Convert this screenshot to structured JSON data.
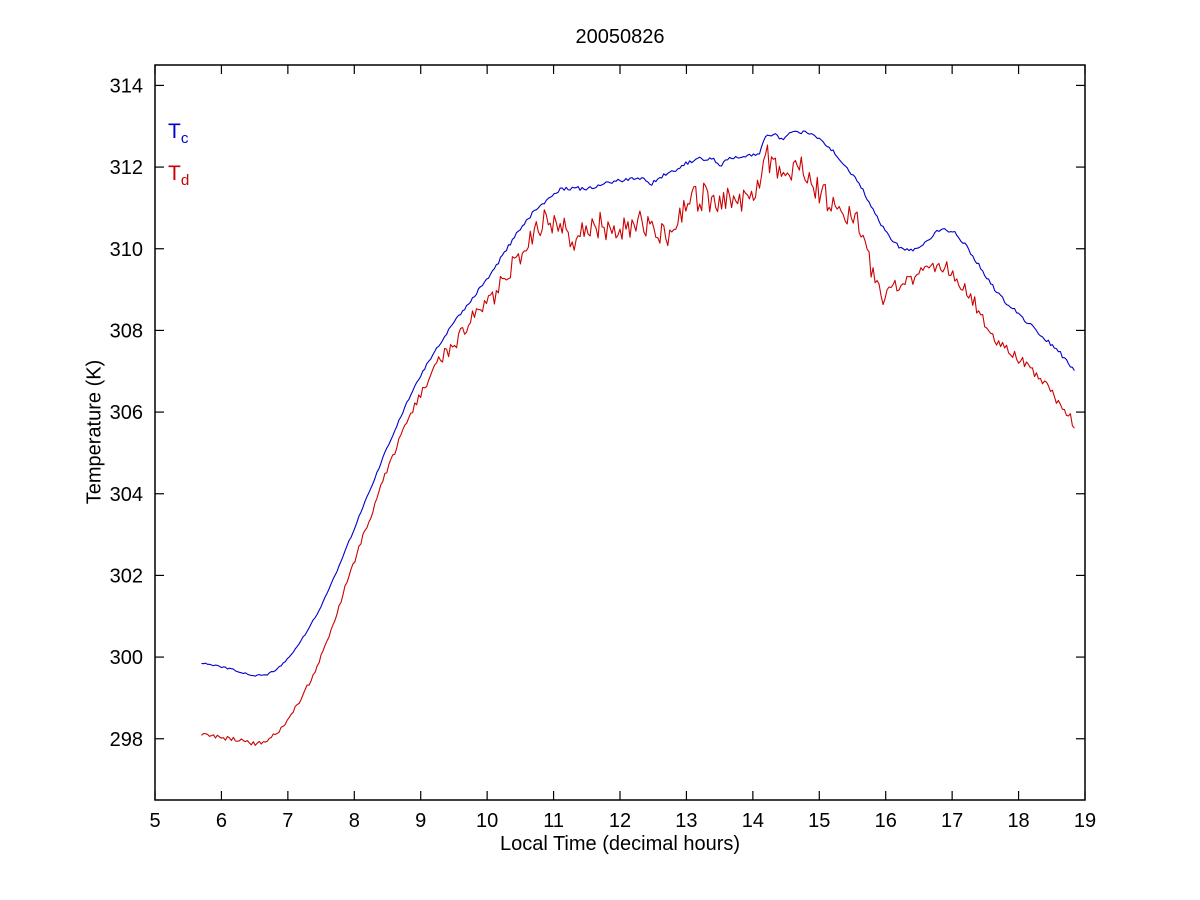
{
  "title": "20050826",
  "legend": [
    {
      "main": "T",
      "sub": "c",
      "color": "#0000cc"
    },
    {
      "main": "T",
      "sub": "d",
      "color": "#cc0000"
    }
  ],
  "chart_data": {
    "type": "line",
    "title": "20050826",
    "xlabel": "Local Time (decimal hours)",
    "ylabel": "Temperature (K)",
    "xlim": [
      5,
      19
    ],
    "ylim": [
      296.5,
      314.5
    ],
    "xticks": [
      5,
      6,
      7,
      8,
      9,
      10,
      11,
      12,
      13,
      14,
      15,
      16,
      17,
      18,
      19
    ],
    "yticks": [
      298,
      300,
      302,
      304,
      306,
      308,
      310,
      312,
      314
    ],
    "grid": false,
    "legend_position": "top-left-inside",
    "series": [
      {
        "name": "Tc",
        "color": "#0000cc",
        "noise_amplitude": [
          [
            5.7,
            0.02
          ],
          [
            9.0,
            0.03
          ],
          [
            10.5,
            0.05
          ],
          [
            14.0,
            0.04
          ],
          [
            18.85,
            0.05
          ]
        ],
        "points": [
          [
            5.7,
            299.85
          ],
          [
            5.9,
            299.8
          ],
          [
            6.1,
            299.72
          ],
          [
            6.3,
            299.63
          ],
          [
            6.5,
            299.55
          ],
          [
            6.7,
            299.57
          ],
          [
            6.9,
            299.78
          ],
          [
            7.1,
            300.15
          ],
          [
            7.3,
            300.65
          ],
          [
            7.5,
            301.25
          ],
          [
            7.7,
            301.95
          ],
          [
            7.9,
            302.75
          ],
          [
            8.1,
            303.55
          ],
          [
            8.3,
            304.35
          ],
          [
            8.5,
            305.15
          ],
          [
            8.7,
            305.9
          ],
          [
            8.9,
            306.6
          ],
          [
            9.1,
            307.2
          ],
          [
            9.3,
            307.7
          ],
          [
            9.5,
            308.2
          ],
          [
            9.7,
            308.6
          ],
          [
            9.9,
            309.05
          ],
          [
            10.1,
            309.5
          ],
          [
            10.3,
            310.0
          ],
          [
            10.5,
            310.5
          ],
          [
            10.7,
            310.9
          ],
          [
            10.9,
            311.2
          ],
          [
            11.1,
            311.45
          ],
          [
            11.3,
            311.5
          ],
          [
            11.5,
            311.45
          ],
          [
            11.7,
            311.55
          ],
          [
            11.9,
            311.65
          ],
          [
            12.1,
            311.7
          ],
          [
            12.35,
            311.75
          ],
          [
            12.45,
            311.55
          ],
          [
            12.6,
            311.75
          ],
          [
            12.8,
            311.9
          ],
          [
            13.0,
            312.1
          ],
          [
            13.2,
            312.2
          ],
          [
            13.4,
            312.2
          ],
          [
            13.5,
            312.0
          ],
          [
            13.6,
            312.2
          ],
          [
            13.8,
            312.25
          ],
          [
            14.0,
            312.3
          ],
          [
            14.1,
            312.35
          ],
          [
            14.18,
            312.75
          ],
          [
            14.35,
            312.8
          ],
          [
            14.45,
            312.65
          ],
          [
            14.55,
            312.85
          ],
          [
            14.8,
            312.85
          ],
          [
            15.0,
            312.7
          ],
          [
            15.2,
            312.4
          ],
          [
            15.4,
            312.0
          ],
          [
            15.6,
            311.6
          ],
          [
            15.8,
            311.0
          ],
          [
            16.0,
            310.4
          ],
          [
            16.2,
            310.05
          ],
          [
            16.4,
            309.95
          ],
          [
            16.6,
            310.15
          ],
          [
            16.8,
            310.45
          ],
          [
            17.0,
            310.45
          ],
          [
            17.2,
            310.1
          ],
          [
            17.4,
            309.6
          ],
          [
            17.6,
            309.1
          ],
          [
            17.8,
            308.7
          ],
          [
            18.0,
            308.4
          ],
          [
            18.2,
            308.1
          ],
          [
            18.4,
            307.8
          ],
          [
            18.6,
            307.5
          ],
          [
            18.85,
            307.0
          ]
        ]
      },
      {
        "name": "Td",
        "color": "#cc0000",
        "noise_amplitude": [
          [
            5.7,
            0.05
          ],
          [
            8.8,
            0.08
          ],
          [
            9.5,
            0.22
          ],
          [
            10.3,
            0.3
          ],
          [
            11.2,
            0.35
          ],
          [
            15.2,
            0.32
          ],
          [
            15.9,
            0.2
          ],
          [
            18.85,
            0.13
          ]
        ],
        "points": [
          [
            5.7,
            298.1
          ],
          [
            5.9,
            298.05
          ],
          [
            6.1,
            298.0
          ],
          [
            6.3,
            297.95
          ],
          [
            6.5,
            297.88
          ],
          [
            6.7,
            297.95
          ],
          [
            6.9,
            298.25
          ],
          [
            7.1,
            298.7
          ],
          [
            7.3,
            299.3
          ],
          [
            7.5,
            300.0
          ],
          [
            7.7,
            300.9
          ],
          [
            7.9,
            301.9
          ],
          [
            8.1,
            302.8
          ],
          [
            8.3,
            303.7
          ],
          [
            8.5,
            304.6
          ],
          [
            8.7,
            305.4
          ],
          [
            8.9,
            306.1
          ],
          [
            9.1,
            306.7
          ],
          [
            9.3,
            307.3
          ],
          [
            9.5,
            307.7
          ],
          [
            9.7,
            308.1
          ],
          [
            9.9,
            308.45
          ],
          [
            10.1,
            308.9
          ],
          [
            10.3,
            309.4
          ],
          [
            10.5,
            309.9
          ],
          [
            10.7,
            310.4
          ],
          [
            10.9,
            310.7
          ],
          [
            11.1,
            310.55
          ],
          [
            11.3,
            310.2
          ],
          [
            11.5,
            310.5
          ],
          [
            11.7,
            310.6
          ],
          [
            11.9,
            310.3
          ],
          [
            12.1,
            310.5
          ],
          [
            12.3,
            310.7
          ],
          [
            12.5,
            310.4
          ],
          [
            12.7,
            310.3
          ],
          [
            12.9,
            310.8
          ],
          [
            13.1,
            311.2
          ],
          [
            13.3,
            311.3
          ],
          [
            13.5,
            311.0
          ],
          [
            13.7,
            311.3
          ],
          [
            13.9,
            311.1
          ],
          [
            14.1,
            311.5
          ],
          [
            14.2,
            312.3
          ],
          [
            14.35,
            311.9
          ],
          [
            14.5,
            311.7
          ],
          [
            14.65,
            312.1
          ],
          [
            14.8,
            311.9
          ],
          [
            15.0,
            311.4
          ],
          [
            15.2,
            311.1
          ],
          [
            15.4,
            310.9
          ],
          [
            15.6,
            310.6
          ],
          [
            15.8,
            309.4
          ],
          [
            15.95,
            308.8
          ],
          [
            16.1,
            309.1
          ],
          [
            16.3,
            309.25
          ],
          [
            16.5,
            309.35
          ],
          [
            16.7,
            309.5
          ],
          [
            16.9,
            309.6
          ],
          [
            17.1,
            309.2
          ],
          [
            17.3,
            308.8
          ],
          [
            17.5,
            308.1
          ],
          [
            17.7,
            307.7
          ],
          [
            17.9,
            307.4
          ],
          [
            18.1,
            307.2
          ],
          [
            18.3,
            306.9
          ],
          [
            18.5,
            306.5
          ],
          [
            18.7,
            306.0
          ],
          [
            18.85,
            305.7
          ]
        ]
      }
    ]
  }
}
